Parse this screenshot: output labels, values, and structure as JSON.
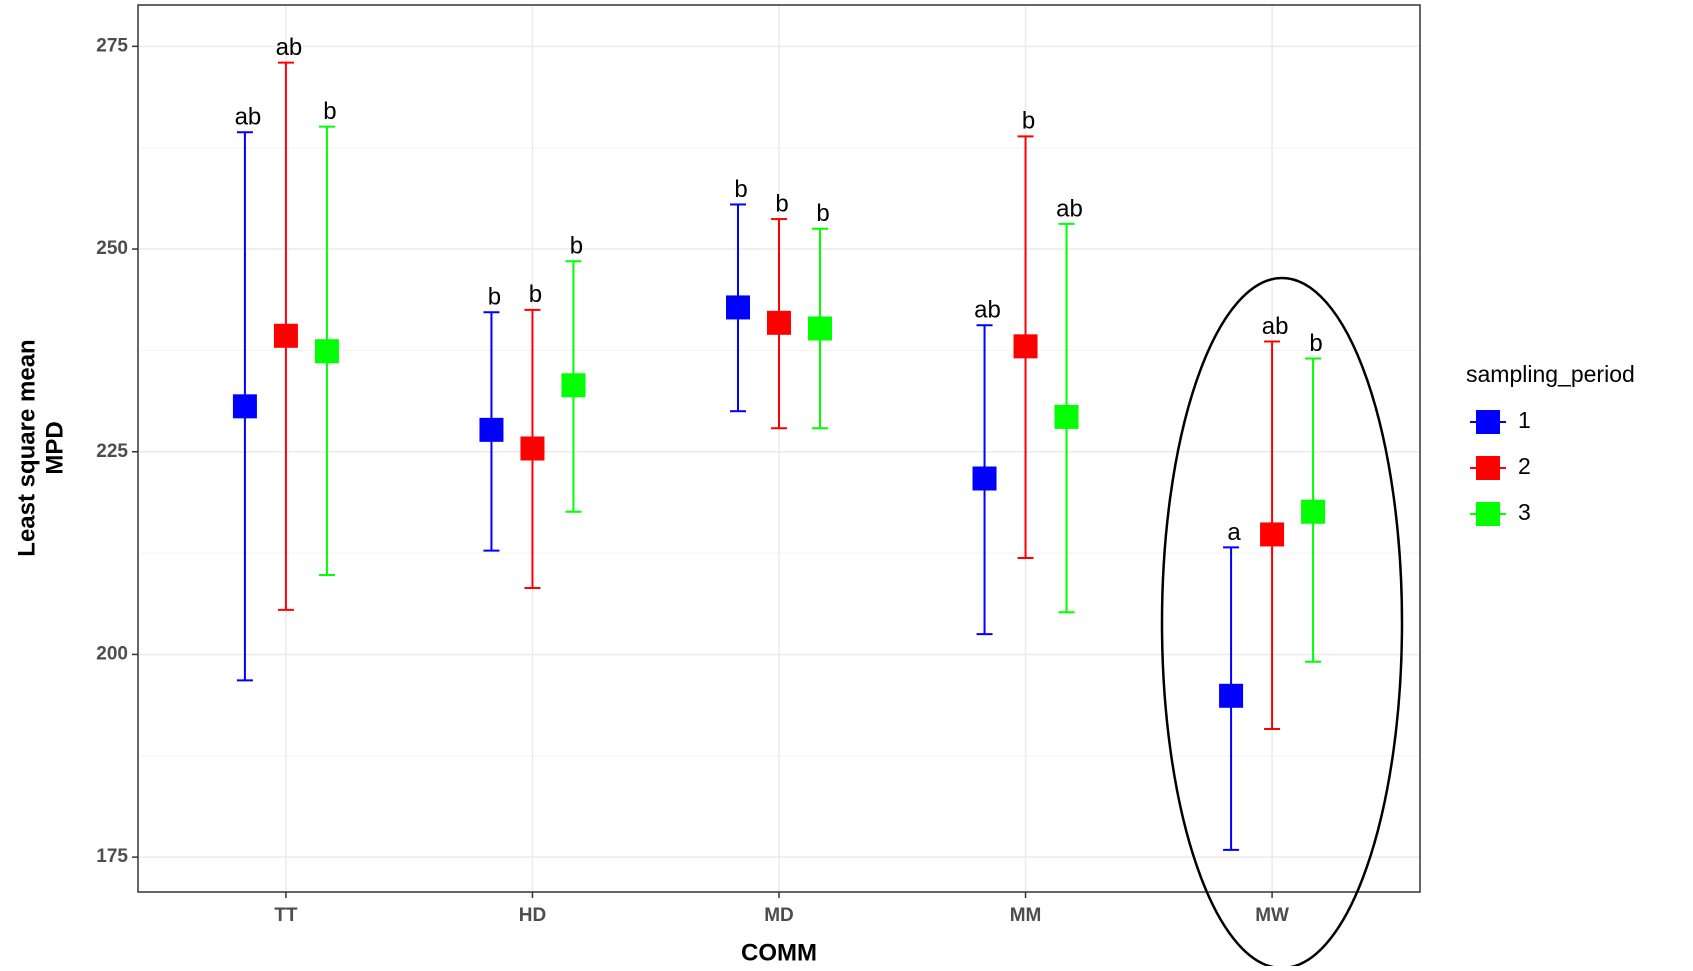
{
  "chart_data": {
    "type": "errorbar",
    "xlabel": "COMM",
    "ylabel": [
      "Least square mean",
      "MPD"
    ],
    "categories": [
      "TT",
      "HD",
      "MD",
      "MM",
      "MW"
    ],
    "ylim": [
      170.7,
      280.1
    ],
    "yticks": [
      175,
      200,
      225,
      250,
      275
    ],
    "grid": true,
    "legend_title": "sampling_period",
    "legend_position": "right",
    "series": [
      {
        "name": "1",
        "color": "#0000ff",
        "values": [
          230.6,
          227.7,
          242.8,
          221.7,
          194.9
        ],
        "lower": [
          196.8,
          212.8,
          230.0,
          202.5,
          175.9
        ],
        "upper": [
          264.4,
          242.2,
          255.5,
          240.6,
          213.2
        ],
        "labels": [
          "ab",
          "b",
          "b",
          "ab",
          "a"
        ]
      },
      {
        "name": "2",
        "color": "#ff0000",
        "values": [
          239.3,
          225.4,
          240.9,
          238.0,
          214.8
        ],
        "lower": [
          205.5,
          208.2,
          227.9,
          211.9,
          190.8
        ],
        "upper": [
          273.0,
          242.5,
          253.7,
          263.9,
          238.6
        ],
        "labels": [
          "ab",
          "b",
          "b",
          "b",
          "ab"
        ]
      },
      {
        "name": "3",
        "color": "#00ff00",
        "values": [
          237.4,
          233.2,
          240.2,
          229.3,
          217.6
        ],
        "lower": [
          209.8,
          217.6,
          227.9,
          205.2,
          199.1
        ],
        "upper": [
          265.1,
          248.5,
          252.5,
          253.1,
          236.5
        ],
        "labels": [
          "b",
          "b",
          "b",
          "ab",
          "b"
        ]
      }
    ]
  }
}
